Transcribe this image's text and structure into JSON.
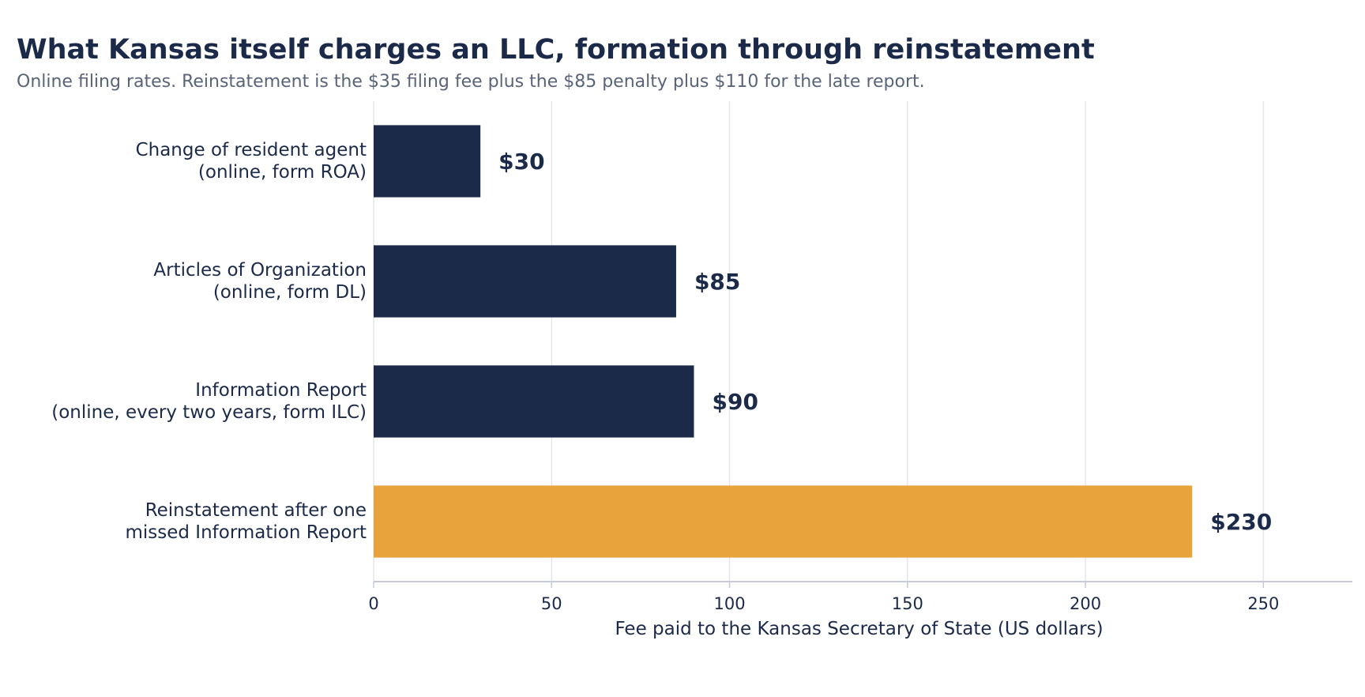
{
  "title": "What Kansas itself charges an LLC, formation through reinstatement",
  "subtitle": "Online filing rates. Reinstatement is the $35 filing fee plus the $85 penalty plus $110 for the late report.",
  "colors": {
    "primary": "#1c2a4a",
    "highlight": "#e8a33d",
    "grid": "#e6e6e6",
    "axis": "#c5cad8",
    "subtitle": "#5a6478"
  },
  "chart_data": {
    "type": "bar",
    "orientation": "horizontal",
    "categories": [
      [
        "Change of resident agent",
        "(online, form ROA)"
      ],
      [
        "Articles of Organization",
        "(online, form DL)"
      ],
      [
        "Information Report",
        "(online, every two years, form ILC)"
      ],
      [
        "Reinstatement after one",
        "missed Information Report"
      ]
    ],
    "values": [
      30,
      85,
      90,
      230
    ],
    "value_labels": [
      "$30",
      "$85",
      "$90",
      "$230"
    ],
    "highlight_index": 3,
    "xlabel": "Fee paid to the Kansas Secretary of State (US dollars)",
    "xticks": [
      0,
      50,
      100,
      150,
      200,
      250
    ],
    "xlim": [
      0,
      275
    ],
    "grid": "vertical"
  }
}
